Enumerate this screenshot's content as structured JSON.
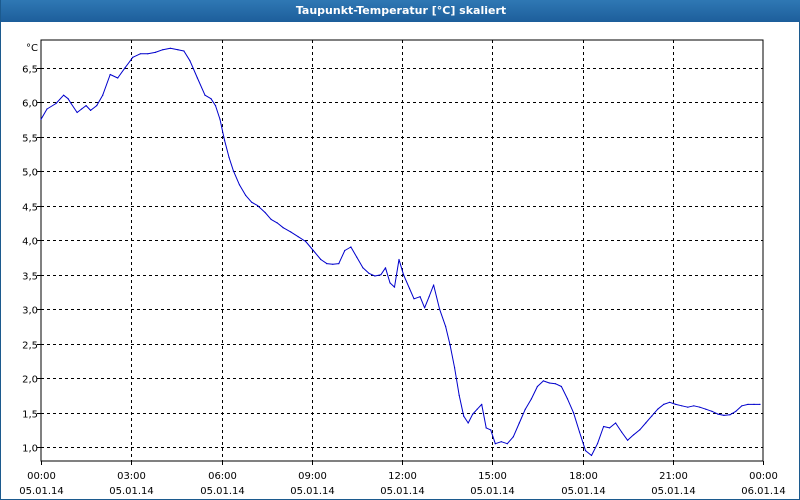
{
  "window": {
    "title": "Taupunkt-Temperatur [°C] skaliert"
  },
  "colors": {
    "titlebar": "#1d5e9b",
    "line": "#0000cc",
    "grid": "#000000"
  },
  "chart_data": {
    "type": "line",
    "title": "Taupunkt-Temperatur [°C] skaliert",
    "xlabel": "",
    "ylabel": "°C",
    "ylim": [
      0.8,
      6.9
    ],
    "xlim": [
      0,
      24
    ],
    "grid": true,
    "legend": "none",
    "y_ticks": [
      {
        "value": 1.0,
        "label": "1,0"
      },
      {
        "value": 1.5,
        "label": "1,5"
      },
      {
        "value": 2.0,
        "label": "2,0"
      },
      {
        "value": 2.5,
        "label": "2,5"
      },
      {
        "value": 3.0,
        "label": "3,0"
      },
      {
        "value": 3.5,
        "label": "3,5"
      },
      {
        "value": 4.0,
        "label": "4,0"
      },
      {
        "value": 4.5,
        "label": "4,5"
      },
      {
        "value": 5.0,
        "label": "5,0"
      },
      {
        "value": 5.5,
        "label": "5,5"
      },
      {
        "value": 6.0,
        "label": "6,0"
      },
      {
        "value": 6.5,
        "label": "6,5"
      }
    ],
    "x_ticks": [
      {
        "value": 0,
        "time": "00:00",
        "date": "05.01.14"
      },
      {
        "value": 3,
        "time": "03:00",
        "date": "05.01.14"
      },
      {
        "value": 6,
        "time": "06:00",
        "date": "05.01.14"
      },
      {
        "value": 9,
        "time": "09:00",
        "date": "05.01.14"
      },
      {
        "value": 12,
        "time": "12:00",
        "date": "05.01.14"
      },
      {
        "value": 15,
        "time": "15:00",
        "date": "05.01.14"
      },
      {
        "value": 18,
        "time": "18:00",
        "date": "05.01.14"
      },
      {
        "value": 21,
        "time": "21:00",
        "date": "05.01.14"
      },
      {
        "value": 24,
        "time": "00:00",
        "date": "06.01.14"
      }
    ],
    "series": [
      {
        "x": [
          0,
          0.2,
          0.5,
          0.75,
          0.9,
          1.0,
          1.2,
          1.35,
          1.5,
          1.65,
          1.85,
          2.05,
          2.3,
          2.55,
          2.8,
          3.05,
          3.3,
          3.55,
          3.8,
          4.05,
          4.3,
          4.55,
          4.75,
          4.95,
          5.2,
          5.45,
          5.65,
          5.8,
          5.95,
          6.1,
          6.25,
          6.4,
          6.6,
          6.8,
          7.0,
          7.2,
          7.45,
          7.65,
          7.85,
          8.05,
          8.3,
          8.55,
          8.8,
          9.05,
          9.3,
          9.5,
          9.7,
          9.9,
          10.1,
          10.3,
          10.5,
          10.7,
          10.9,
          11.1,
          11.3,
          11.45,
          11.6,
          11.75,
          11.9,
          12.05,
          12.25,
          12.4,
          12.6,
          12.75,
          12.9,
          13.05,
          13.25,
          13.45,
          13.6,
          13.75,
          13.9,
          14.05,
          14.2,
          14.35,
          14.5,
          14.65,
          14.8,
          14.95,
          15.1,
          15.3,
          15.5,
          15.7,
          15.9,
          16.1,
          16.3,
          16.5,
          16.7,
          16.9,
          17.1,
          17.3,
          17.5,
          17.7,
          17.9,
          18.1,
          18.3,
          18.5,
          18.7,
          18.9,
          19.1,
          19.3,
          19.5,
          19.7,
          19.9,
          20.1,
          20.3,
          20.5,
          20.7,
          20.9,
          21.1,
          21.3,
          21.5,
          21.7,
          21.9,
          22.1,
          22.3,
          22.5,
          22.7,
          22.9,
          23.1,
          23.3,
          23.5,
          23.7,
          23.9
        ],
        "values": [
          5.75,
          5.9,
          5.98,
          6.1,
          6.05,
          5.98,
          5.85,
          5.9,
          5.95,
          5.88,
          5.95,
          6.1,
          6.4,
          6.35,
          6.5,
          6.65,
          6.7,
          6.7,
          6.72,
          6.76,
          6.78,
          6.76,
          6.74,
          6.6,
          6.35,
          6.1,
          6.05,
          5.95,
          5.75,
          5.45,
          5.2,
          5.0,
          4.8,
          4.65,
          4.55,
          4.5,
          4.4,
          4.3,
          4.25,
          4.18,
          4.12,
          4.05,
          3.98,
          3.85,
          3.72,
          3.66,
          3.65,
          3.66,
          3.85,
          3.9,
          3.75,
          3.6,
          3.52,
          3.48,
          3.5,
          3.6,
          3.38,
          3.32,
          3.72,
          3.5,
          3.3,
          3.15,
          3.18,
          3.02,
          3.18,
          3.35,
          3.0,
          2.75,
          2.48,
          2.15,
          1.75,
          1.45,
          1.35,
          1.48,
          1.55,
          1.62,
          1.28,
          1.25,
          1.05,
          1.08,
          1.05,
          1.15,
          1.35,
          1.55,
          1.7,
          1.88,
          1.96,
          1.93,
          1.92,
          1.88,
          1.7,
          1.5,
          1.22,
          0.95,
          0.88,
          1.05,
          1.3,
          1.28,
          1.35,
          1.22,
          1.1,
          1.18,
          1.25,
          1.35,
          1.45,
          1.55,
          1.62,
          1.65,
          1.62,
          1.6,
          1.58,
          1.6,
          1.58,
          1.55,
          1.52,
          1.48,
          1.46,
          1.47,
          1.52,
          1.6,
          1.62,
          1.62,
          1.62
        ]
      }
    ]
  }
}
